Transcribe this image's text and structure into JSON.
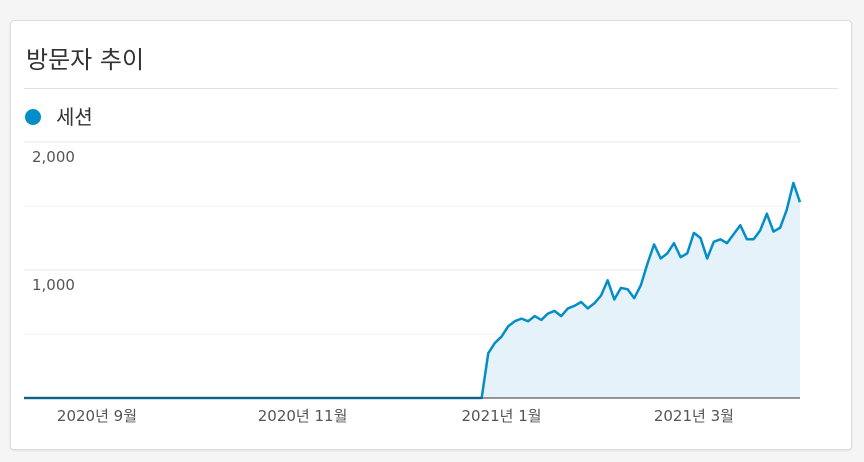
{
  "chart_data": {
    "type": "line",
    "title": "방문자 추이",
    "categories": [
      null,
      null,
      null,
      null,
      null,
      null,
      null,
      null,
      null,
      null,
      null,
      "2020년 9월",
      null,
      null,
      null,
      null,
      null,
      null,
      null,
      null,
      null,
      null,
      null,
      null,
      null,
      null,
      null,
      null,
      null,
      null,
      null,
      null,
      null,
      null,
      null,
      null,
      null,
      null,
      null,
      null,
      null,
      null,
      "2020년 11월",
      null,
      null,
      null,
      null,
      null,
      null,
      null,
      null,
      null,
      null,
      null,
      null,
      null,
      null,
      null,
      null,
      null,
      null,
      null,
      null,
      null,
      null,
      null,
      null,
      null,
      null,
      null,
      null,
      null,
      "2021년 1월",
      null,
      null,
      null,
      null,
      null,
      null,
      null,
      null,
      null,
      null,
      null,
      null,
      null,
      null,
      null,
      null,
      null,
      null,
      null,
      null,
      null,
      null,
      null,
      null,
      null,
      null,
      null,
      null,
      "2021년 3월",
      null,
      null,
      null,
      null,
      null,
      null,
      null,
      null,
      null,
      null,
      null,
      null,
      null,
      null,
      null,
      null
    ],
    "series": [
      {
        "name": "세션",
        "color": "#058dc7",
        "values": [
          0,
          0,
          0,
          0,
          0,
          0,
          0,
          0,
          0,
          0,
          0,
          0,
          0,
          0,
          0,
          0,
          0,
          0,
          0,
          0,
          0,
          0,
          0,
          0,
          0,
          0,
          0,
          0,
          0,
          0,
          0,
          0,
          0,
          0,
          0,
          0,
          0,
          0,
          0,
          0,
          0,
          0,
          0,
          0,
          0,
          0,
          0,
          0,
          0,
          0,
          0,
          0,
          0,
          0,
          0,
          0,
          0,
          0,
          0,
          0,
          0,
          0,
          0,
          0,
          0,
          0,
          0,
          0,
          0,
          0,
          350,
          430,
          480,
          560,
          600,
          620,
          600,
          640,
          610,
          660,
          680,
          640,
          700,
          720,
          750,
          700,
          740,
          800,
          920,
          770,
          860,
          850,
          780,
          880,
          1050,
          1200,
          1090,
          1130,
          1210,
          1100,
          1130,
          1290,
          1250,
          1090,
          1220,
          1240,
          1210,
          1280,
          1350,
          1240,
          1240,
          1310,
          1440,
          1300,
          1330,
          1470,
          1680,
          1530
        ]
      }
    ],
    "ylim": [
      0,
      2000
    ],
    "yticks": [
      {
        "value": 1000,
        "label": "1,000"
      },
      {
        "value": 2000,
        "label": "2,000"
      }
    ],
    "minor_yticks": [
      500,
      1500
    ],
    "grid": true
  }
}
